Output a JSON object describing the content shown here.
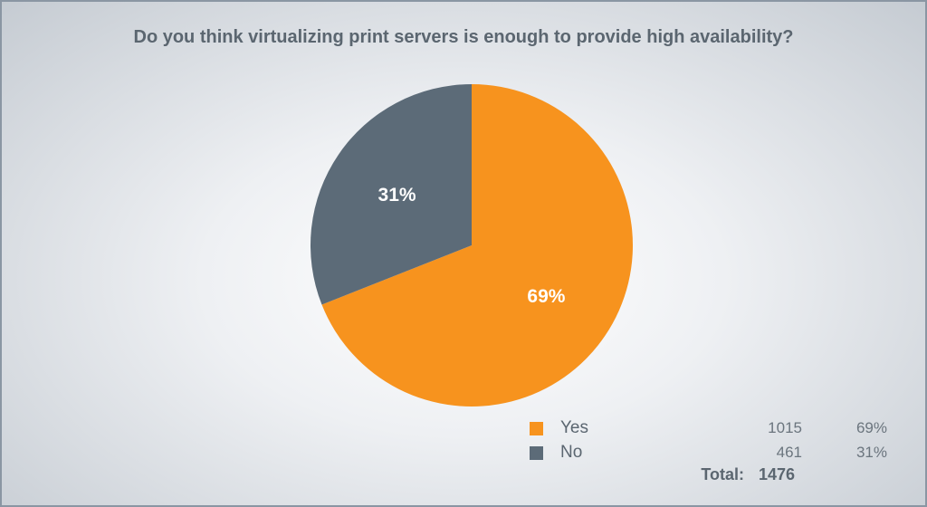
{
  "chart_data": {
    "type": "pie",
    "title": "Do you think virtualizing print servers is enough to provide high availability?",
    "slices": [
      {
        "label": "Yes",
        "count": 1015,
        "percent_label": "69%",
        "value": 69,
        "color": "#f7931e"
      },
      {
        "label": "No",
        "count": 461,
        "percent_label": "31%",
        "value": 31,
        "color": "#5c6b78"
      }
    ],
    "total_label": "Total:",
    "total": 1476
  },
  "legend": {
    "rows": [
      {
        "label": "Yes",
        "count": "1015",
        "percent": "69%",
        "color": "#f7931e"
      },
      {
        "label": "No",
        "count": "461",
        "percent": "31%",
        "color": "#5c6b78"
      }
    ],
    "total_label": "Total:",
    "total_value": "1476"
  }
}
